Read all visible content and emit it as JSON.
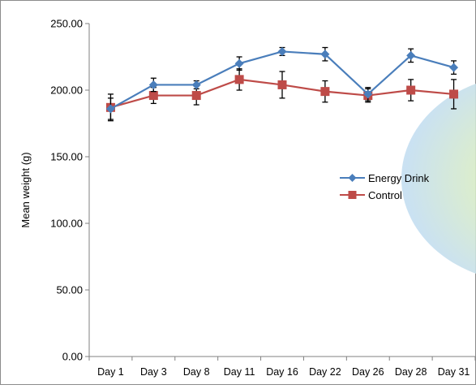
{
  "colors": {
    "energy_drink": "#4a7ebb",
    "control": "#be4b48",
    "error_bar": "#000000",
    "axis": "#808080",
    "frame": "#8c8c8c"
  },
  "chart_data": {
    "type": "line",
    "title": "",
    "xlabel": "",
    "ylabel": "Mean weight (g)",
    "ylim": [
      0,
      250
    ],
    "y_ticks": [
      "0.00",
      "50.00",
      "100.00",
      "150.00",
      "200.00",
      "250.00"
    ],
    "y_tick_values": [
      0,
      50,
      100,
      150,
      200,
      250
    ],
    "categories": [
      "Day 1",
      "Day 3",
      "Day 8",
      "Day 11",
      "Day 16",
      "Day 22",
      "Day 26",
      "Day 28",
      "Day 31"
    ],
    "grid": false,
    "legend_position": "right",
    "series": [
      {
        "name": "Energy Drink",
        "marker": "diamond",
        "values": [
          186,
          204,
          204,
          220,
          229,
          227,
          197,
          226,
          217
        ],
        "errors": [
          8,
          5,
          3,
          5,
          3,
          5,
          5,
          5,
          5
        ]
      },
      {
        "name": "Control",
        "marker": "square",
        "values": [
          187,
          196,
          196,
          208,
          204,
          199,
          196,
          200,
          197
        ],
        "errors": [
          10,
          6,
          7,
          8,
          10,
          8,
          5,
          8,
          11
        ]
      }
    ]
  }
}
